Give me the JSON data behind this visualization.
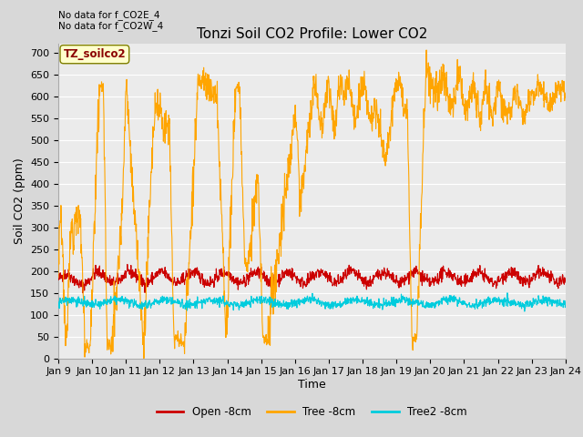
{
  "title": "Tonzi Soil CO2 Profile: Lower CO2",
  "ylabel": "Soil CO2 (ppm)",
  "xlabel": "Time",
  "note_line1": "No data for f_CO2E_4",
  "note_line2": "No data for f_CO2W_4",
  "watermark": "TZ_soilco2",
  "ylim": [
    0,
    720
  ],
  "yticks": [
    0,
    50,
    100,
    150,
    200,
    250,
    300,
    350,
    400,
    450,
    500,
    550,
    600,
    650,
    700
  ],
  "xtick_labels": [
    "Jan 9",
    "Jan 10",
    "Jan 11",
    "Jan 12",
    "Jan 13",
    "Jan 14",
    "Jan 15",
    "Jan 16",
    "Jan 17",
    "Jan 18",
    "Jan 19",
    "Jan 20",
    "Jan 21",
    "Jan 22",
    "Jan 23",
    "Jan 24"
  ],
  "background_color": "#d8d8d8",
  "plot_bg_color": "#ebebeb",
  "grid_color": "#ffffff",
  "open_color": "#cc0000",
  "tree_color": "#ffa500",
  "tree2_color": "#00ccdd",
  "legend_labels": [
    "Open -8cm",
    "Tree -8cm",
    "Tree2 -8cm"
  ],
  "open_lw": 0.8,
  "tree_lw": 0.8,
  "tree2_lw": 0.8,
  "title_fontsize": 11,
  "axis_fontsize": 9,
  "tick_fontsize": 8
}
